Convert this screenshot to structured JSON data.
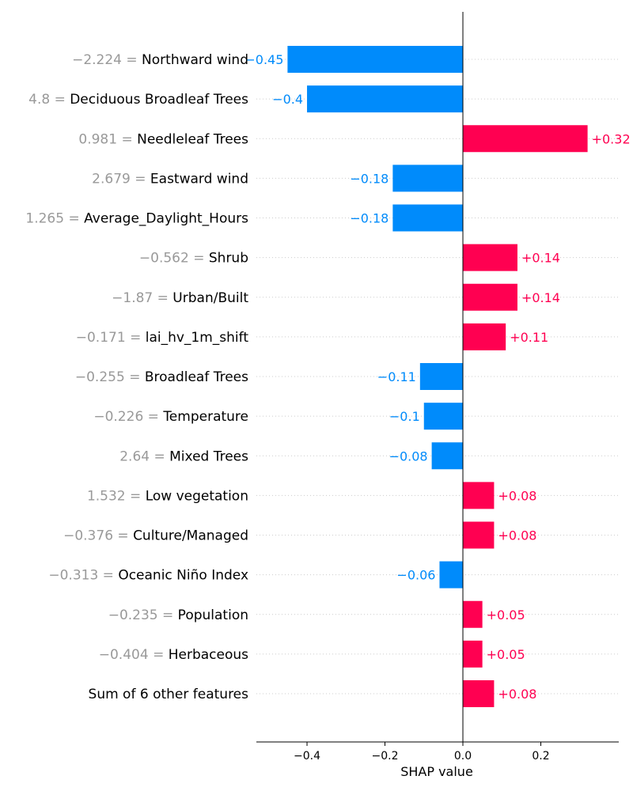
{
  "colors": {
    "positive": "#ff0051",
    "negative": "#008bfb",
    "value_text": "#999999",
    "grid": "#cccccc",
    "axis": "#000000"
  },
  "chart_data": {
    "type": "bar",
    "orientation": "horizontal",
    "xlabel": "SHAP value",
    "xlim": [
      -0.53,
      0.4
    ],
    "xticks": [
      {
        "value": -0.4,
        "label": "−0.4"
      },
      {
        "value": -0.2,
        "label": "−0.2"
      },
      {
        "value": 0.0,
        "label": "0.0"
      },
      {
        "value": 0.2,
        "label": "0.2"
      }
    ],
    "features": [
      {
        "value": "−2.224",
        "name": "Northward wind",
        "shap": -0.45,
        "label": "−0.45"
      },
      {
        "value": "4.8",
        "name": "Deciduous Broadleaf Trees",
        "shap": -0.4,
        "label": "−0.4"
      },
      {
        "value": "0.981",
        "name": "Needleleaf Trees",
        "shap": 0.32,
        "label": "+0.32"
      },
      {
        "value": "2.679",
        "name": "Eastward wind",
        "shap": -0.18,
        "label": "−0.18"
      },
      {
        "value": "1.265",
        "name": "Average_Daylight_Hours",
        "shap": -0.18,
        "label": "−0.18"
      },
      {
        "value": "−0.562",
        "name": "Shrub",
        "shap": 0.14,
        "label": "+0.14"
      },
      {
        "value": "−1.87",
        "name": "Urban/Built",
        "shap": 0.14,
        "label": "+0.14"
      },
      {
        "value": "−0.171",
        "name": "lai_hv_1m_shift",
        "shap": 0.11,
        "label": "+0.11"
      },
      {
        "value": "−0.255",
        "name": "Broadleaf Trees",
        "shap": -0.11,
        "label": "−0.11"
      },
      {
        "value": "−0.226",
        "name": "Temperature",
        "shap": -0.1,
        "label": "−0.1"
      },
      {
        "value": "2.64",
        "name": "Mixed Trees",
        "shap": -0.08,
        "label": "−0.08"
      },
      {
        "value": "1.532",
        "name": "Low vegetation",
        "shap": 0.08,
        "label": "+0.08"
      },
      {
        "value": "−0.376",
        "name": "Culture/Managed",
        "shap": 0.08,
        "label": "+0.08"
      },
      {
        "value": "−0.313",
        "name": "Oceanic Niño Index",
        "shap": -0.06,
        "label": "−0.06"
      },
      {
        "value": "−0.235",
        "name": "Population",
        "shap": 0.05,
        "label": "+0.05"
      },
      {
        "value": "−0.404",
        "name": "Herbaceous",
        "shap": 0.05,
        "label": "+0.05"
      },
      {
        "value": "",
        "name": "Sum of 6 other features",
        "shap": 0.08,
        "label": "+0.08"
      }
    ]
  }
}
